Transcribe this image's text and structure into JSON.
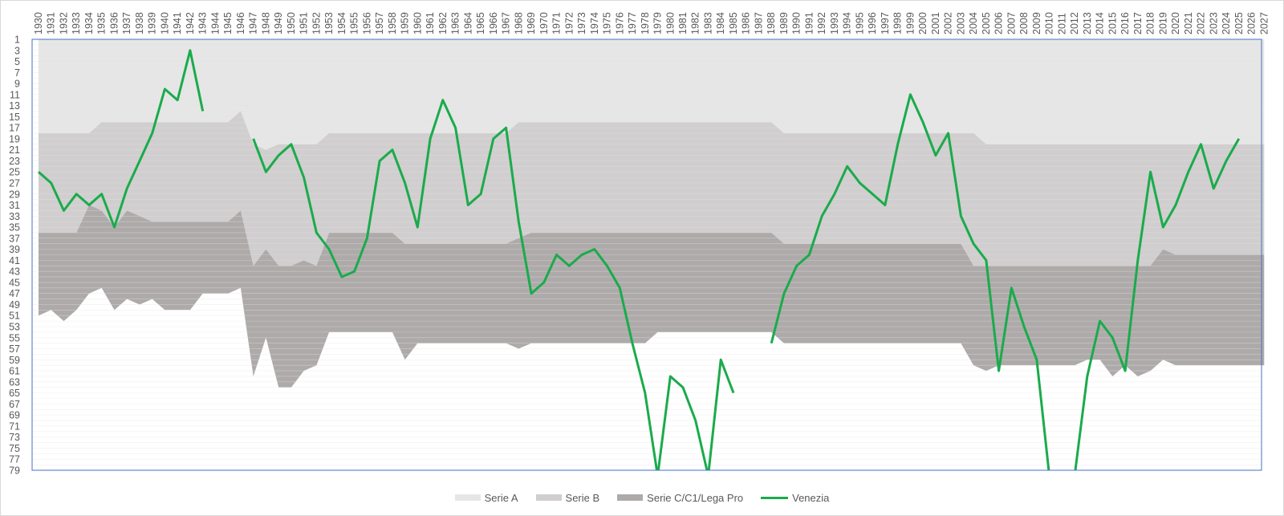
{
  "colors": {
    "serie_a": "#e6e6e6",
    "serie_b": "#d0cece",
    "serie_c": "#aeaaaa",
    "venezia": "#1aab4b",
    "grid": "#e3e3e3",
    "axis": "#4472c4"
  },
  "chart_data": {
    "type": "area",
    "x_categories": [
      "1930",
      "1931",
      "1932",
      "1933",
      "1934",
      "1935",
      "1936",
      "1937",
      "1938",
      "1939",
      "1940",
      "1941",
      "1942",
      "1943",
      "1944",
      "1945",
      "1946",
      "1947",
      "1948",
      "1949",
      "1950",
      "1951",
      "1952",
      "1953",
      "1954",
      "1955",
      "1956",
      "1957",
      "1958",
      "1959",
      "1960",
      "1961",
      "1962",
      "1963",
      "1964",
      "1965",
      "1966",
      "1967",
      "1968",
      "1969",
      "1970",
      "1971",
      "1972",
      "1973",
      "1974",
      "1975",
      "1976",
      "1977",
      "1978",
      "1979",
      "1980",
      "1981",
      "1982",
      "1983",
      "1984",
      "1985",
      "1986",
      "1987",
      "1988",
      "1989",
      "1990",
      "1991",
      "1992",
      "1993",
      "1994",
      "1995",
      "1996",
      "1997",
      "1998",
      "1999",
      "2000",
      "2001",
      "2002",
      "2003",
      "2004",
      "2005",
      "2006",
      "2007",
      "2008",
      "2009",
      "2010",
      "2011",
      "2012",
      "2013",
      "2014",
      "2015",
      "2016",
      "2017",
      "2018",
      "2019",
      "2020",
      "2021",
      "2022",
      "2023",
      "2024",
      "2025",
      "2026",
      "2027"
    ],
    "y_ticks": [
      1,
      3,
      5,
      7,
      9,
      11,
      13,
      15,
      17,
      19,
      21,
      23,
      25,
      27,
      29,
      31,
      33,
      35,
      37,
      39,
      41,
      43,
      45,
      47,
      49,
      51,
      53,
      55,
      57,
      59,
      61,
      63,
      65,
      67,
      69,
      71,
      73,
      75,
      77,
      79
    ],
    "ylim": [
      1,
      80
    ],
    "y_reversed": true,
    "grid": true,
    "legend_position": "bottom",
    "series": [
      {
        "name": "Serie A",
        "kind": "band",
        "lower": [
          18,
          18,
          18,
          18,
          18,
          16,
          16,
          16,
          16,
          16,
          16,
          16,
          16,
          16,
          16,
          16,
          14,
          20,
          21,
          20,
          20,
          20,
          20,
          18,
          18,
          18,
          18,
          18,
          18,
          18,
          18,
          18,
          18,
          18,
          18,
          18,
          18,
          18,
          16,
          16,
          16,
          16,
          16,
          16,
          16,
          16,
          16,
          16,
          16,
          16,
          16,
          16,
          16,
          16,
          16,
          16,
          16,
          16,
          16,
          18,
          18,
          18,
          18,
          18,
          18,
          18,
          18,
          18,
          18,
          18,
          18,
          18,
          18,
          18,
          18,
          20,
          20,
          20,
          20,
          20,
          20,
          20,
          20,
          20,
          20,
          20,
          20,
          20,
          20,
          20,
          20,
          20,
          20,
          20,
          20,
          20,
          20,
          20
        ]
      },
      {
        "name": "Serie B",
        "kind": "band",
        "lower": [
          36,
          36,
          36,
          36,
          31,
          32,
          35,
          32,
          33,
          34,
          34,
          34,
          34,
          34,
          34,
          34,
          32,
          42,
          39,
          42,
          42,
          41,
          42,
          36,
          36,
          36,
          36,
          36,
          36,
          38,
          38,
          38,
          38,
          38,
          38,
          38,
          38,
          38,
          37,
          36,
          36,
          36,
          36,
          36,
          36,
          36,
          36,
          36,
          36,
          36,
          36,
          36,
          36,
          36,
          36,
          36,
          36,
          36,
          36,
          38,
          38,
          38,
          38,
          38,
          38,
          38,
          38,
          38,
          38,
          38,
          38,
          38,
          38,
          38,
          42,
          42,
          42,
          42,
          42,
          42,
          42,
          42,
          42,
          42,
          42,
          42,
          42,
          42,
          42,
          39,
          40,
          40,
          40,
          40,
          40,
          40,
          40,
          40
        ]
      },
      {
        "name": "Serie C/C1/Lega Pro",
        "kind": "band",
        "lower": [
          51,
          50,
          52,
          50,
          47,
          46,
          50,
          48,
          49,
          48,
          50,
          50,
          50,
          47,
          47,
          47,
          46,
          62,
          55,
          64,
          64,
          61,
          60,
          54,
          54,
          54,
          54,
          54,
          54,
          59,
          56,
          56,
          56,
          56,
          56,
          56,
          56,
          56,
          57,
          56,
          56,
          56,
          56,
          56,
          56,
          56,
          56,
          56,
          56,
          54,
          54,
          54,
          54,
          54,
          54,
          54,
          54,
          54,
          54,
          56,
          56,
          56,
          56,
          56,
          56,
          56,
          56,
          56,
          56,
          56,
          56,
          56,
          56,
          56,
          60,
          61,
          60,
          60,
          60,
          60,
          60,
          60,
          60,
          59,
          59,
          62,
          60,
          62,
          61,
          59,
          60,
          60,
          60,
          60,
          60,
          60,
          60,
          60
        ]
      },
      {
        "name": "Venezia",
        "kind": "line",
        "values": [
          25,
          27,
          32,
          29,
          31,
          29,
          35,
          28,
          23,
          18,
          10,
          12,
          3,
          14,
          null,
          null,
          null,
          19,
          25,
          22,
          20,
          26,
          36,
          39,
          44,
          43,
          37,
          23,
          21,
          27,
          35,
          19,
          12,
          17,
          31,
          29,
          19,
          17,
          34,
          47,
          45,
          40,
          42,
          40,
          39,
          42,
          46,
          56,
          65,
          80,
          62,
          64,
          70,
          80,
          59,
          65,
          null,
          null,
          56,
          47,
          42,
          40,
          33,
          29,
          24,
          27,
          29,
          31,
          20,
          11,
          16,
          22,
          18,
          33,
          38,
          41,
          61,
          46,
          53,
          59,
          80,
          null,
          80,
          62,
          52,
          55,
          61,
          41,
          25,
          35,
          31,
          25,
          20,
          28,
          23,
          19,
          null,
          null
        ]
      }
    ]
  },
  "legend": {
    "serie_a": "Serie A",
    "serie_b": "Serie B",
    "serie_c": "Serie C/C1/Lega Pro",
    "venezia": "Venezia"
  }
}
